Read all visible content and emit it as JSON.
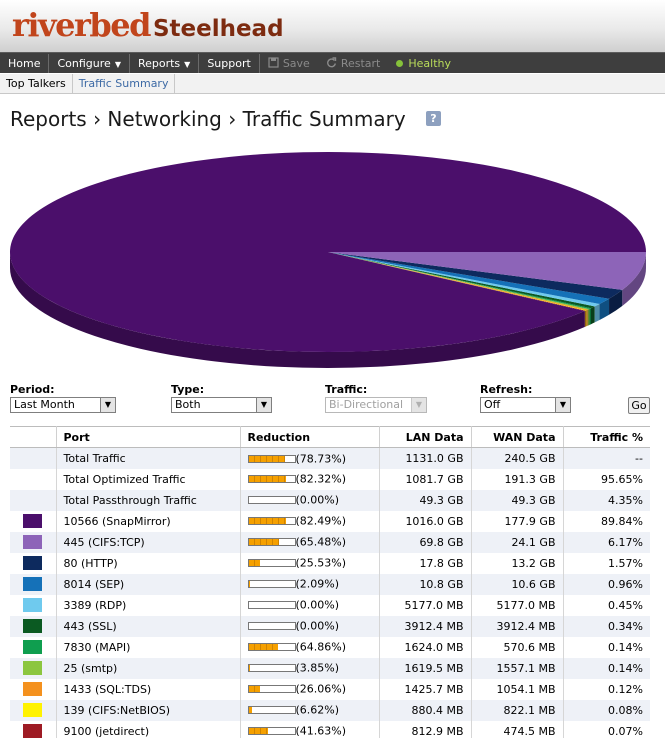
{
  "app": {
    "brand": "riverbed",
    "product": "Steelhead"
  },
  "nav": {
    "items": [
      {
        "label": "Home",
        "arrow": ""
      },
      {
        "label": "Configure",
        "arrow": "▼"
      },
      {
        "label": "Reports",
        "arrow": "▼"
      },
      {
        "label": "Support",
        "arrow": ""
      }
    ],
    "save_label": "Save",
    "restart_label": "Restart",
    "health_label": "Healthy"
  },
  "subnav": {
    "items": [
      "Top Talkers",
      "Traffic Summary"
    ],
    "active": "Traffic Summary"
  },
  "title": "Reports › Networking › Traffic Summary",
  "help_label": "?",
  "controls": {
    "period": {
      "label": "Period:",
      "value": "Last Month"
    },
    "type": {
      "label": "Type:",
      "value": "Both"
    },
    "traffic": {
      "label": "Traffic:",
      "value": "Bi-Directional"
    },
    "refresh": {
      "label": "Refresh:",
      "value": "Off"
    },
    "go_label": "Go"
  },
  "table": {
    "headers": [
      "",
      "Port",
      "Reduction",
      "LAN Data",
      "WAN Data",
      "Traffic %"
    ],
    "rows": [
      {
        "color": "",
        "port": "Total Traffic",
        "reduction": 78.73,
        "reduction_text": "(78.73%)",
        "lan": "1131.0 GB",
        "wan": "240.5 GB",
        "traffic": "--"
      },
      {
        "color": "",
        "port": "Total Optimized Traffic",
        "reduction": 82.32,
        "reduction_text": "(82.32%)",
        "lan": "1081.7 GB",
        "wan": "191.3 GB",
        "traffic": "95.65%"
      },
      {
        "color": "",
        "port": "Total Passthrough Traffic",
        "reduction": 0.0,
        "reduction_text": "(0.00%)",
        "lan": "49.3 GB",
        "wan": "49.3 GB",
        "traffic": "4.35%"
      },
      {
        "color": "#4b0f6b",
        "port": "10566 (SnapMirror)",
        "reduction": 82.49,
        "reduction_text": "(82.49%)",
        "lan": "1016.0 GB",
        "wan": "177.9 GB",
        "traffic": "89.84%"
      },
      {
        "color": "#8d64b8",
        "port": "445 (CIFS:TCP)",
        "reduction": 65.48,
        "reduction_text": "(65.48%)",
        "lan": "69.8 GB",
        "wan": "24.1 GB",
        "traffic": "6.17%"
      },
      {
        "color": "#0d2a5e",
        "port": "80 (HTTP)",
        "reduction": 25.53,
        "reduction_text": "(25.53%)",
        "lan": "17.8 GB",
        "wan": "13.2 GB",
        "traffic": "1.57%"
      },
      {
        "color": "#1571b8",
        "port": "8014 (SEP)",
        "reduction": 2.09,
        "reduction_text": "(2.09%)",
        "lan": "10.8 GB",
        "wan": "10.6 GB",
        "traffic": "0.96%"
      },
      {
        "color": "#6fcaee",
        "port": "3389 (RDP)",
        "reduction": 0.0,
        "reduction_text": "(0.00%)",
        "lan": "5177.0 MB",
        "wan": "5177.0 MB",
        "traffic": "0.45%"
      },
      {
        "color": "#0b5a22",
        "port": "443 (SSL)",
        "reduction": 0.0,
        "reduction_text": "(0.00%)",
        "lan": "3912.4 MB",
        "wan": "3912.4 MB",
        "traffic": "0.34%"
      },
      {
        "color": "#0f9e4f",
        "port": "7830 (MAPI)",
        "reduction": 64.86,
        "reduction_text": "(64.86%)",
        "lan": "1624.0 MB",
        "wan": "570.6 MB",
        "traffic": "0.14%"
      },
      {
        "color": "#8cc63f",
        "port": "25 (smtp)",
        "reduction": 3.85,
        "reduction_text": "(3.85%)",
        "lan": "1619.5 MB",
        "wan": "1557.1 MB",
        "traffic": "0.14%"
      },
      {
        "color": "#f4911e",
        "port": "1433 (SQL:TDS)",
        "reduction": 26.06,
        "reduction_text": "(26.06%)",
        "lan": "1425.7 MB",
        "wan": "1054.1 MB",
        "traffic": "0.12%"
      },
      {
        "color": "#fff200",
        "port": "139 (CIFS:NetBIOS)",
        "reduction": 6.62,
        "reduction_text": "(6.62%)",
        "lan": "880.4 MB",
        "wan": "822.1 MB",
        "traffic": "0.08%"
      },
      {
        "color": "#9e1b24",
        "port": "9100 (jetdirect)",
        "reduction": 41.63,
        "reduction_text": "(41.63%)",
        "lan": "812.9 MB",
        "wan": "474.5 MB",
        "traffic": "0.07%"
      }
    ]
  },
  "chart_data": {
    "type": "pie",
    "title": "",
    "slices": [
      {
        "label": "10566 (SnapMirror)",
        "value": 89.84,
        "color": "#4b0f6b"
      },
      {
        "label": "445 (CIFS:TCP)",
        "value": 6.17,
        "color": "#8d64b8"
      },
      {
        "label": "80 (HTTP)",
        "value": 1.57,
        "color": "#0d2a5e"
      },
      {
        "label": "8014 (SEP)",
        "value": 0.96,
        "color": "#1571b8"
      },
      {
        "label": "3389 (RDP)",
        "value": 0.45,
        "color": "#6fcaee"
      },
      {
        "label": "443 (SSL)",
        "value": 0.34,
        "color": "#0b5a22"
      },
      {
        "label": "7830 (MAPI)",
        "value": 0.14,
        "color": "#0f9e4f"
      },
      {
        "label": "25 (smtp)",
        "value": 0.14,
        "color": "#8cc63f"
      },
      {
        "label": "1433 (SQL:TDS)",
        "value": 0.12,
        "color": "#f4911e"
      },
      {
        "label": "139 (CIFS:NetBIOS)",
        "value": 0.08,
        "color": "#fff200"
      },
      {
        "label": "9100 (jetdirect)",
        "value": 0.07,
        "color": "#9e1b24"
      }
    ],
    "legend": "table-below"
  }
}
